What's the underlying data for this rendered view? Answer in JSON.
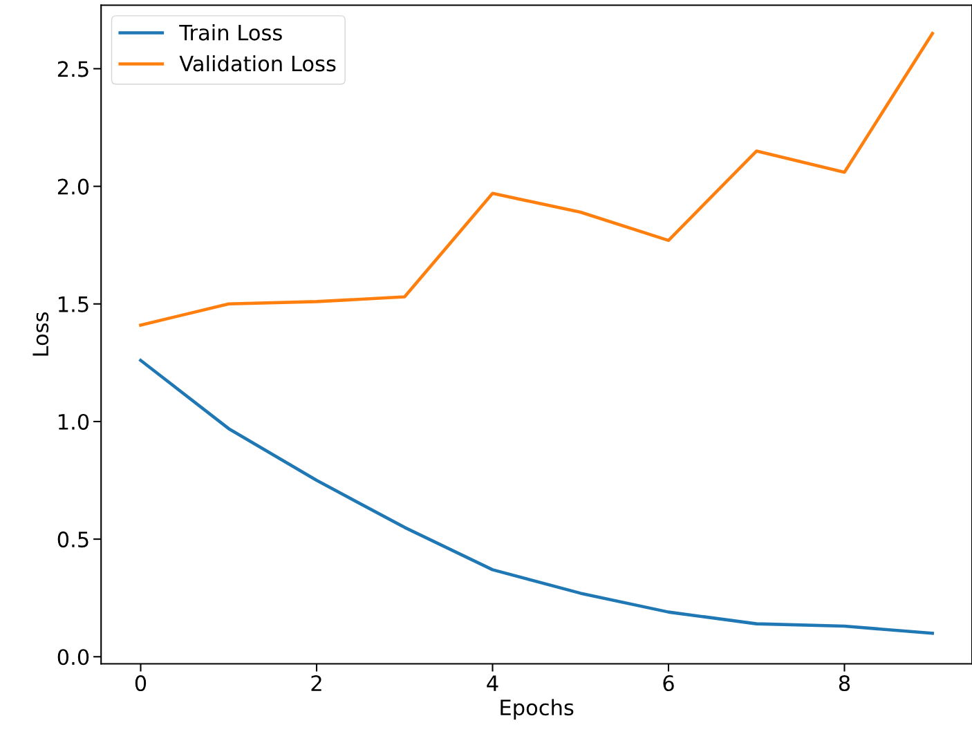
{
  "chart_data": {
    "type": "line",
    "xlabel": "Epochs",
    "ylabel": "Loss",
    "x": [
      0,
      1,
      2,
      3,
      4,
      5,
      6,
      7,
      8,
      9
    ],
    "series": [
      {
        "name": "Train Loss",
        "color": "#1f77b4",
        "values": [
          1.26,
          0.97,
          0.75,
          0.55,
          0.37,
          0.27,
          0.19,
          0.14,
          0.13,
          0.1
        ]
      },
      {
        "name": "Validation Loss",
        "color": "#ff7f0e",
        "values": [
          1.41,
          1.5,
          1.51,
          1.53,
          1.97,
          1.89,
          1.77,
          2.15,
          2.06,
          2.65
        ]
      }
    ],
    "xlim": [
      -0.45,
      9.45
    ],
    "ylim": [
      -0.03,
      2.77
    ],
    "xticks": [
      0,
      2,
      4,
      6,
      8
    ],
    "yticks": [
      {
        "value": 0,
        "label": "0.0"
      },
      0.5,
      {
        "value": 1,
        "label": "1.0"
      },
      1.5,
      {
        "value": 2,
        "label": "2.0"
      },
      2.5
    ],
    "legend": "top left",
    "grid": false,
    "marker": "none",
    "line_style": "solid"
  }
}
